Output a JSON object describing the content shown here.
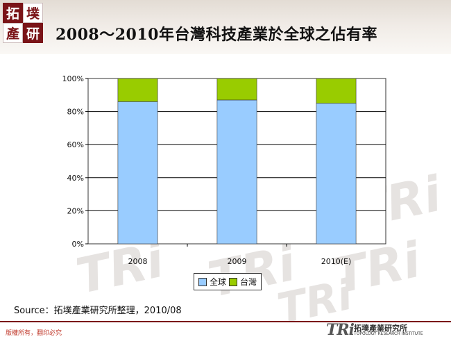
{
  "header": {
    "logo_chars": [
      "拓",
      "墣",
      "產",
      "研"
    ],
    "title": "2008～2010年台灣科技產業於全球之佔有率"
  },
  "chart_data": {
    "type": "bar",
    "stacked": true,
    "percent": true,
    "categories": [
      "2008",
      "2009",
      "2010(E)"
    ],
    "series": [
      {
        "name": "全球",
        "values": [
          86,
          87,
          85
        ],
        "color": "#99ccff"
      },
      {
        "name": "台灣",
        "values": [
          14,
          13,
          15
        ],
        "color": "#99cc00"
      }
    ],
    "y_ticks": [
      "0%",
      "20%",
      "40%",
      "60%",
      "80%",
      "100%"
    ],
    "ylim": [
      0,
      100
    ],
    "grid": true,
    "legend_position": "bottom"
  },
  "source": "Source：拓墣產業研究所整理，2010/08",
  "footer": {
    "copyright": "版權所有，翻印必究",
    "brand": "TRi",
    "brand_cn": "拓墣產業研究所",
    "brand_en": "TOPOLOGY RESEARCH INSTITUTE"
  },
  "watermark": "TRi"
}
